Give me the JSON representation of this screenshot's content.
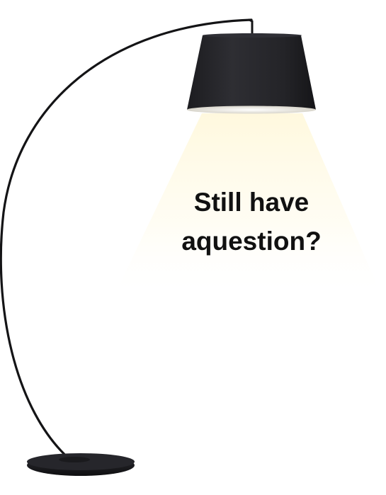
{
  "headline": {
    "line1": "Still have",
    "line2": "aquestion?"
  },
  "illustration": {
    "subject": "arc-floor-lamp-icon",
    "colors": {
      "lamp": "#1a1a1c",
      "shade_top": "#2a2a2e",
      "light_glow": "#fffbe8",
      "shade_inner": "#f4f2ea"
    }
  }
}
